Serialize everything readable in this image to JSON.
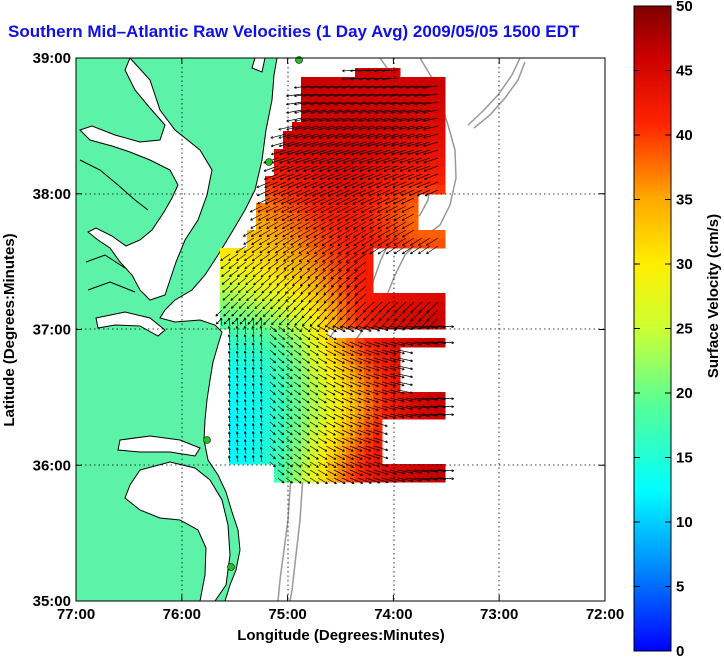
{
  "title": "Southern Mid–Atlantic Raw Velocities (1 Day Avg) 2009/05/05 1500 EDT",
  "map": {
    "xlabel": "Longitude (Degrees:Minutes)",
    "ylabel": "Latitude (Degrees:Minutes)",
    "lon_ticks": [
      "77:00",
      "76:00",
      "75:00",
      "74:00",
      "73:00",
      "72:00"
    ],
    "lat_ticks": [
      "39:00",
      "38:00",
      "37:00",
      "36:00",
      "35:00"
    ],
    "lon_range": [
      -77,
      -72
    ],
    "lat_range": [
      35,
      39
    ],
    "grid": "dotted",
    "land_color": "#5cf2a8",
    "coast_color": "#000000",
    "bathymetry_color": "#999999",
    "station_color": "#22c022"
  },
  "colorbar": {
    "label": "Surface Velocity (cm/s)",
    "ticks": [
      "0",
      "5",
      "10",
      "15",
      "20",
      "25",
      "30",
      "35",
      "40",
      "45",
      "50"
    ],
    "range": [
      0,
      50
    ],
    "colormap": [
      "#0000ff",
      "#00aaff",
      "#00ffff",
      "#55ff55",
      "#ffff00",
      "#ffaa00",
      "#ff3300",
      "#cc0000",
      "#800000"
    ]
  }
}
